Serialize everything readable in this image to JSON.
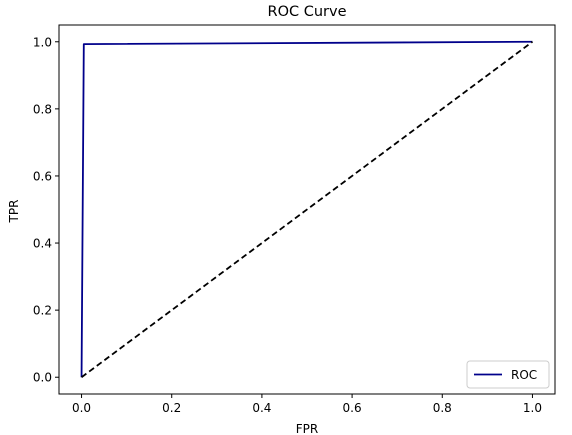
{
  "chart_data": {
    "type": "line",
    "title": "ROC Curve",
    "xlabel": "FPR",
    "ylabel": "TPR",
    "xlim": [
      -0.05,
      1.05
    ],
    "ylim": [
      -0.05,
      1.05
    ],
    "xticks": [
      0.0,
      0.2,
      0.4,
      0.6,
      0.8,
      1.0
    ],
    "yticks": [
      0.0,
      0.2,
      0.4,
      0.6,
      0.8,
      1.0
    ],
    "xtick_labels": [
      "0.0",
      "0.2",
      "0.4",
      "0.6",
      "0.8",
      "1.0"
    ],
    "ytick_labels": [
      "0.0",
      "0.2",
      "0.4",
      "0.6",
      "0.8",
      "1.0"
    ],
    "grid": false,
    "legend_position": "bottom-right",
    "series": [
      {
        "name": "ROC",
        "color": "#00008b",
        "style": "solid",
        "x": [
          0.0,
          0.005,
          1.0
        ],
        "y": [
          0.0,
          0.993,
          1.0
        ]
      },
      {
        "color": "#000000",
        "style": "dashed",
        "x": [
          0.0,
          1.0
        ],
        "y": [
          0.0,
          1.0
        ]
      }
    ]
  }
}
